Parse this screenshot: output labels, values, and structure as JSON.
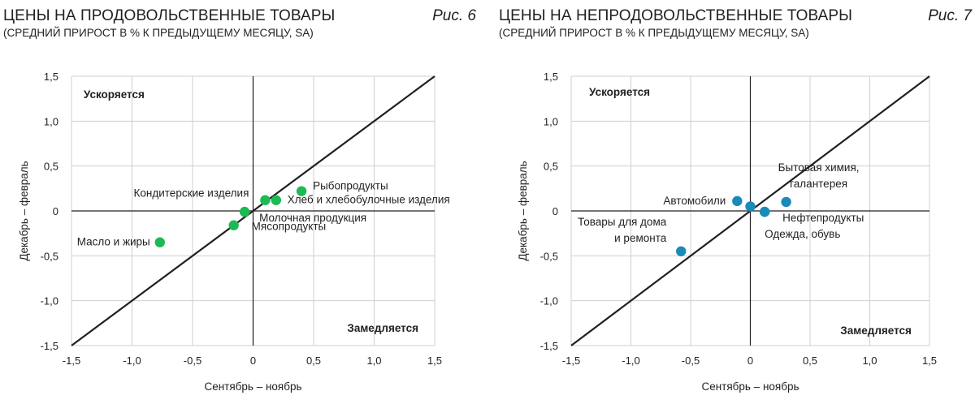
{
  "charts": [
    {
      "title": "ЦЕНЫ НА ПРОДОВОЛЬСТВЕННЫЕ ТОВАРЫ",
      "subtitle": "(СРЕДНИЙ ПРИРОСТ В % К ПРЕДЫДУЩЕМУ МЕСЯЦУ, SA)",
      "figure_label": "Рис. 6"
    },
    {
      "title": "ЦЕНЫ НА НЕПРОДОВОЛЬСТВЕННЫЕ ТОВАРЫ",
      "subtitle": "(СРЕДНИЙ ПРИРОСТ В % К ПРЕДЫДУЩЕМУ МЕСЯЦУ, SA)",
      "figure_label": "Рис. 7"
    }
  ],
  "chart_data": [
    {
      "type": "scatter",
      "title": "ЦЕНЫ НА ПРОДОВОЛЬСТВЕННЫЕ ТОВАРЫ",
      "subtitle": "(СРЕДНИЙ ПРИРОСТ В % К ПРЕДЫДУЩЕМУ МЕСЯЦУ, SA)",
      "xlabel": "Сентябрь – ноябрь",
      "ylabel": "Декабрь – февраль",
      "xlim": [
        -1.5,
        1.5
      ],
      "ylim": [
        -1.5,
        1.5
      ],
      "x_ticks": [
        "-1,5",
        "-1,0",
        "-0,5",
        "0",
        "0,5",
        "1,0",
        "1,5"
      ],
      "y_ticks": [
        "1,5",
        "1,0",
        "0,5",
        "0",
        "-0,5",
        "-1,0",
        "-1,5"
      ],
      "grid": true,
      "diagonal_line": true,
      "point_color": "#1db954",
      "annotations": [
        {
          "text": "Ускоряется",
          "x": -1.4,
          "y": 1.3
        },
        {
          "text": "Замедляется",
          "x": 1.5,
          "y": -1.3
        }
      ],
      "points": [
        {
          "label": "Рыбопродукты",
          "x": 0.4,
          "y": 0.22
        },
        {
          "label": "Хлеб и хлебобулочные изделия",
          "x": 0.19,
          "y": 0.12
        },
        {
          "label": "Кондитерские изделия",
          "x": 0.1,
          "y": 0.12
        },
        {
          "label": "Молочная продукция",
          "x": -0.07,
          "y": -0.01
        },
        {
          "label": "Мясопродукты",
          "x": -0.16,
          "y": -0.16
        },
        {
          "label": "Масло и жиры",
          "x": -0.77,
          "y": -0.35
        }
      ]
    },
    {
      "type": "scatter",
      "title": "ЦЕНЫ НА НЕПРОДОВОЛЬСТВЕННЫЕ ТОВАРЫ",
      "subtitle": "(СРЕДНИЙ ПРИРОСТ В % К ПРЕДЫДУЩЕМУ МЕСЯЦУ, SA)",
      "xlabel": "Сентябрь – ноябрь",
      "ylabel": "Декабрь – февраль",
      "xlim": [
        -1.5,
        1.5
      ],
      "ylim": [
        -1.5,
        1.5
      ],
      "x_ticks": [
        "-1,5",
        "-1,0",
        "-0,5",
        "0",
        "0,5",
        "1,0",
        "1,5"
      ],
      "y_ticks": [
        "1,5",
        "1,0",
        "0,5",
        "0",
        "-0,5",
        "-1,0",
        "-1,5"
      ],
      "grid": true,
      "diagonal_line": true,
      "point_color": "#1a8ab8",
      "annotations": [
        {
          "text": "Ускоряется",
          "x": -1.35,
          "y": 1.33
        },
        {
          "text": "Замедляется",
          "x": 1.35,
          "y": -1.33
        }
      ],
      "points": [
        {
          "label": "Автомобили",
          "x": -0.11,
          "y": 0.11
        },
        {
          "label": "",
          "x": 0.0,
          "y": 0.05
        },
        {
          "label": "Бытовая химия,\nгалантерея",
          "x": 0.3,
          "y": 0.1
        },
        {
          "label": "Нефтепродукты",
          "x": 0.12,
          "y": -0.01
        },
        {
          "label": "Одежда, обувь",
          "x": 0.12,
          "y": -0.01
        },
        {
          "label": "Товары для дома\nи ремонта",
          "x": -0.58,
          "y": -0.45
        }
      ]
    }
  ]
}
